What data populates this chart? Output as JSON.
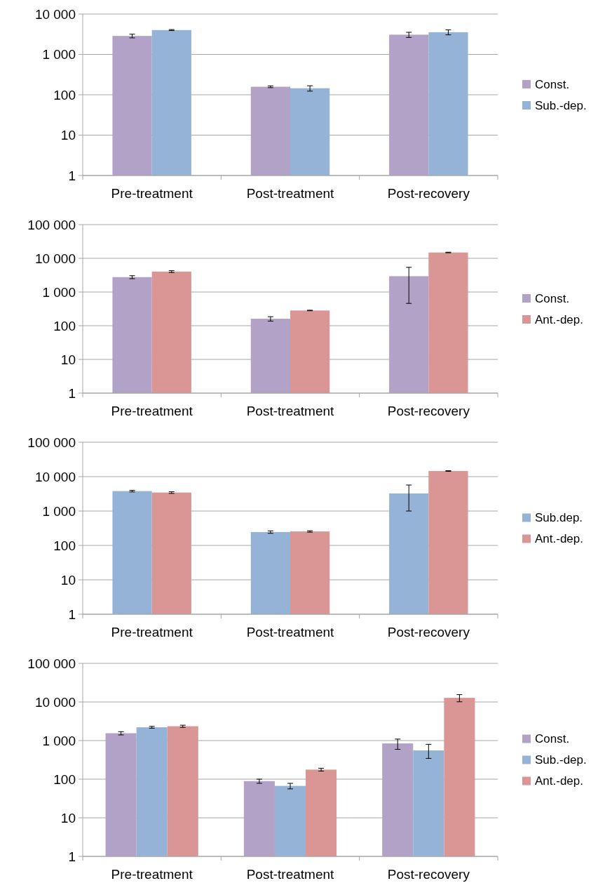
{
  "chart_data": [
    {
      "type": "bar",
      "categories": [
        "Pre-treatment",
        "Post-treatment",
        "Post-recovery"
      ],
      "log": true,
      "grid": "y",
      "legend": "right",
      "ylim": [
        1,
        10000
      ],
      "yticks": [
        1,
        10,
        100,
        {
          "value": 1000,
          "label": "1 000"
        },
        {
          "value": 10000,
          "label": "10 000"
        }
      ],
      "series": [
        {
          "name": "Const.",
          "color": "#b3a2c7",
          "values": [
            2870,
            158,
            3080
          ],
          "errors": [
            300,
            8,
            450
          ]
        },
        {
          "name": "Sub.-dep.",
          "color": "#95b3d7",
          "values": [
            4010,
            145,
            3550
          ],
          "errors": [
            120,
            22,
            500
          ]
        }
      ]
    },
    {
      "type": "bar",
      "categories": [
        "Pre-treatment",
        "Post-treatment",
        "Post-recovery"
      ],
      "log": true,
      "grid": "y",
      "legend": "right",
      "ylim": [
        1,
        100000
      ],
      "yticks": [
        1,
        10,
        100,
        {
          "value": 1000,
          "label": "1 000"
        },
        {
          "value": 10000,
          "label": "10 000"
        },
        {
          "value": 100000,
          "label": "100 000"
        }
      ],
      "series": [
        {
          "name": "Const.",
          "color": "#b3a2c7",
          "values": [
            2770,
            161,
            2950
          ],
          "errors": [
            280,
            24,
            [
              460,
              5400
            ]
          ]
        },
        {
          "name": "Ant.-dep.",
          "color": "#d99694",
          "values": [
            4040,
            283,
            14900
          ],
          "errors": [
            250,
            5,
            300
          ]
        }
      ]
    },
    {
      "type": "bar",
      "categories": [
        "Pre-treatment",
        "Post-treatment",
        "Post-recovery"
      ],
      "log": true,
      "grid": "y",
      "legend": "right",
      "ylim": [
        1,
        100000
      ],
      "yticks": [
        1,
        10,
        100,
        {
          "value": 1000,
          "label": "1 000"
        },
        {
          "value": 10000,
          "label": "10 000"
        },
        {
          "value": 100000,
          "label": "100 000"
        }
      ],
      "series": [
        {
          "name": "Sub.dep.",
          "color": "#95b3d7",
          "values": [
            3800,
            245,
            3250
          ],
          "errors": [
            200,
            20,
            [
              1000,
              5700
            ]
          ]
        },
        {
          "name": "Ant.-dep.",
          "color": "#d99694",
          "values": [
            3450,
            255,
            14600
          ],
          "errors": [
            200,
            12,
            300
          ]
        }
      ]
    },
    {
      "type": "bar",
      "categories": [
        "Pre-treatment",
        "Post-treatment",
        "Post-recovery"
      ],
      "log": true,
      "grid": "y",
      "legend": "right",
      "ylim": [
        1,
        100000
      ],
      "yticks": [
        1,
        10,
        100,
        {
          "value": 1000,
          "label": "1 000"
        },
        {
          "value": 10000,
          "label": "10 000"
        },
        {
          "value": 100000,
          "label": "100 000"
        }
      ],
      "series": [
        {
          "name": "Const.",
          "color": "#b3a2c7",
          "values": [
            1550,
            89,
            843
          ],
          "errors": [
            150,
            11,
            250
          ]
        },
        {
          "name": "Sub.-dep.",
          "color": "#95b3d7",
          "values": [
            2210,
            67,
            556
          ],
          "errors": [
            120,
            11,
            [
              345,
              800
            ]
          ]
        },
        {
          "name": "Ant.-dep.",
          "color": "#d99694",
          "values": [
            2350,
            177,
            12800
          ],
          "errors": [
            150,
            15,
            2700
          ]
        }
      ]
    }
  ]
}
